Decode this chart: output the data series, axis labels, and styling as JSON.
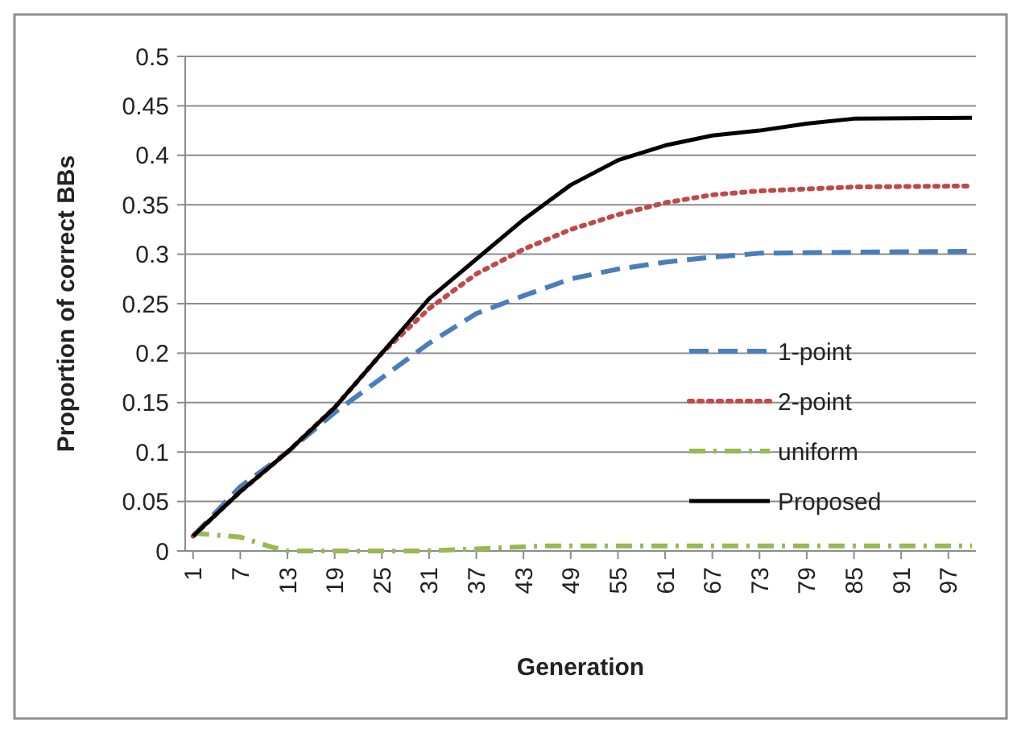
{
  "chart_data": {
    "type": "line",
    "xlabel": "Generation",
    "ylabel": "Proportion of correct BBs",
    "xlim": [
      0,
      100.5
    ],
    "xticks": [
      1,
      7,
      13,
      19,
      25,
      31,
      37,
      43,
      49,
      55,
      61,
      67,
      73,
      79,
      85,
      91,
      97
    ],
    "ylim": [
      0,
      0.5
    ],
    "yticks": [
      0,
      0.05,
      0.1,
      0.15,
      0.2,
      0.25,
      0.3,
      0.35,
      0.4,
      0.45,
      0.5
    ],
    "grid": "y",
    "legend": "right",
    "series": [
      {
        "name": "1-point",
        "color": "#4a7ebb",
        "line_style": "dashed",
        "x": [
          1,
          7,
          13,
          19,
          25,
          31,
          37,
          43,
          49,
          55,
          61,
          67,
          73,
          85,
          100
        ],
        "values": [
          0.015,
          0.065,
          0.1,
          0.14,
          0.175,
          0.21,
          0.24,
          0.258,
          0.275,
          0.285,
          0.292,
          0.297,
          0.301,
          0.302,
          0.303
        ]
      },
      {
        "name": "2-point",
        "color": "#be4b48",
        "line_style": "dotted",
        "x": [
          1,
          7,
          13,
          19,
          25,
          31,
          37,
          43,
          49,
          55,
          61,
          67,
          73,
          79,
          85,
          100
        ],
        "values": [
          0.015,
          0.06,
          0.1,
          0.145,
          0.2,
          0.245,
          0.28,
          0.305,
          0.325,
          0.34,
          0.352,
          0.36,
          0.364,
          0.366,
          0.368,
          0.369
        ]
      },
      {
        "name": "uniform",
        "color": "#98b954",
        "line_style": "dashdot",
        "x": [
          1,
          7,
          11,
          13,
          30,
          37,
          45,
          100
        ],
        "values": [
          0.018,
          0.014,
          0.004,
          0,
          0,
          0.002,
          0.005,
          0.005
        ]
      },
      {
        "name": "Proposed",
        "color": "#000000",
        "line_style": "solid",
        "x": [
          1,
          3,
          7,
          13,
          19,
          25,
          31,
          37,
          43,
          49,
          55,
          61,
          67,
          73,
          79,
          85,
          100
        ],
        "values": [
          0.015,
          0.03,
          0.06,
          0.1,
          0.145,
          0.2,
          0.255,
          0.295,
          0.335,
          0.37,
          0.395,
          0.41,
          0.42,
          0.425,
          0.432,
          0.437,
          0.438
        ]
      }
    ]
  }
}
